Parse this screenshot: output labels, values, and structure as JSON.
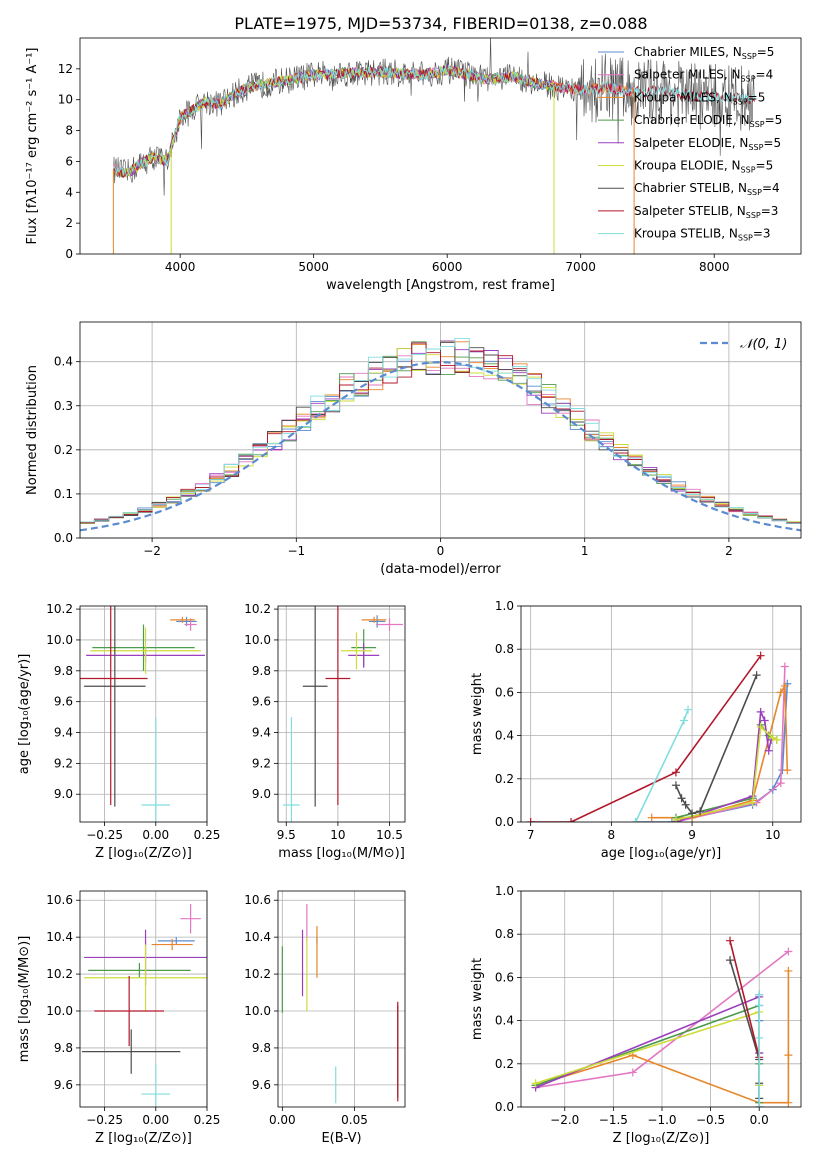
{
  "figure_title": "PLATE=1975, MJD=53734, FIBERID=0138, z=0.088",
  "colors": {
    "Chabrier MILES": "#5b8bd0",
    "Salpeter MILES": "#e377c2",
    "Kroupa MILES": "#e7862b",
    "Chabrier ELODIE": "#4c9a4c",
    "Salpeter ELODIE": "#9b3fbf",
    "Kroupa ELODIE": "#cddc39",
    "Chabrier STELIB": "#4d4d4d",
    "Salpeter STELIB": "#b2182b",
    "Kroupa STELIB": "#80dede"
  },
  "chart_data": [
    {
      "id": "spectrum",
      "type": "line",
      "xlabel": "wavelength [Angstrom, rest frame]",
      "ylabel": "Flux [fλ10⁻¹⁷ erg cm⁻² s⁻¹ A⁻¹]",
      "xlim": [
        3250,
        8650
      ],
      "ylim": [
        0,
        14
      ],
      "xticks": [
        4000,
        5000,
        6000,
        7000,
        8000
      ],
      "yticks": [
        0,
        2,
        4,
        6,
        8,
        10,
        12
      ],
      "legend_position": "upper right",
      "legend": [
        {
          "name": "Chabrier MILES",
          "label": "Chabrier MILES, N",
          "sub": "SSP",
          "n": "=5"
        },
        {
          "name": "Salpeter MILES",
          "label": "Salpeter MILES, N",
          "sub": "SSP",
          "n": "=4"
        },
        {
          "name": "Kroupa MILES",
          "label": "Kroupa MILES, N",
          "sub": "SSP",
          "n": "=5"
        },
        {
          "name": "Chabrier ELODIE",
          "label": "Chabrier ELODIE, N",
          "sub": "SSP",
          "n": "=5"
        },
        {
          "name": "Salpeter ELODIE",
          "label": "Salpeter ELODIE, N",
          "sub": "SSP",
          "n": "=5"
        },
        {
          "name": "Kroupa ELODIE",
          "label": "Kroupa ELODIE, N",
          "sub": "SSP",
          "n": "=5"
        },
        {
          "name": "Chabrier STELIB",
          "label": "Chabrier STELIB, N",
          "sub": "SSP",
          "n": "=4"
        },
        {
          "name": "Salpeter STELIB",
          "label": "Salpeter STELIB, N",
          "sub": "SSP",
          "n": "=3"
        },
        {
          "name": "Kroupa STELIB",
          "label": "Kroupa STELIB, N",
          "sub": "SSP",
          "n": "=3"
        }
      ],
      "data_continuum": {
        "wavelength": [
          3500,
          3600,
          3700,
          3800,
          3900,
          4000,
          4100,
          4200,
          4300,
          4400,
          4500,
          4700,
          5000,
          5200,
          5500,
          5800,
          6000,
          6300,
          6500,
          6700,
          7000,
          7200,
          7400,
          7600,
          7800,
          8000,
          8200,
          8300
        ],
        "flux": [
          5.5,
          5.2,
          5.8,
          6.3,
          6.0,
          8.8,
          9.4,
          9.9,
          9.7,
          10.3,
          10.8,
          11.1,
          11.6,
          11.7,
          11.8,
          11.6,
          11.9,
          11.3,
          11.5,
          11.0,
          10.6,
          10.8,
          10.5,
          10.6,
          10.3,
          10.2,
          10.1,
          10.0
        ]
      }
    },
    {
      "id": "residuals",
      "type": "histogram",
      "xlabel": "(data-model)/error",
      "ylabel": "Normed distribution",
      "xlim": [
        -2.5,
        2.5
      ],
      "ylim": [
        0,
        0.49
      ],
      "xticks": [
        -2,
        -1,
        0,
        1,
        2
      ],
      "yticks": [
        0.0,
        0.1,
        0.2,
        0.3,
        0.4
      ],
      "bin_width": 0.1,
      "legend_position": "upper right",
      "reference_curve": {
        "label": "𝒩(0, 1)",
        "mean": 0,
        "sigma": 1,
        "color": "#5b8bd0",
        "style": "dashed"
      }
    },
    {
      "id": "age_vs_Z",
      "type": "errorbar",
      "xlabel": "Z [log₁₀(Z/Z⊙)]",
      "ylabel": "age  [log₁₀(age/yr)]",
      "xlim": [
        -0.37,
        0.25
      ],
      "ylim": [
        8.82,
        10.22
      ],
      "xticks": [
        -0.25,
        0.0,
        0.25
      ],
      "xticklabels": [
        "−0.25",
        "0.00",
        "0.25"
      ],
      "yticks": [
        9.0,
        9.2,
        9.4,
        9.6,
        9.8,
        10.0,
        10.2
      ],
      "points": [
        {
          "model": "Chabrier MILES",
          "x": 0.15,
          "y": 10.12,
          "xerr": 0.05,
          "yerr": 0.03
        },
        {
          "model": "Salpeter MILES",
          "x": 0.17,
          "y": 10.1,
          "xerr": 0.03,
          "yerr": 0.04
        },
        {
          "model": "Kroupa MILES",
          "x": 0.13,
          "y": 10.13,
          "xerr": 0.06,
          "yerr": 0.02
        },
        {
          "model": "Chabrier ELODIE",
          "x": -0.06,
          "y": 9.95,
          "xerr": 0.25,
          "yerr": 0.15
        },
        {
          "model": "Salpeter ELODIE",
          "x": -0.05,
          "y": 9.9,
          "xerr": 0.29,
          "yerr": 0.05
        },
        {
          "model": "Kroupa ELODIE",
          "x": -0.05,
          "y": 9.93,
          "xerr": 0.27,
          "yerr": 0.15
        },
        {
          "model": "Chabrier STELIB",
          "x": -0.2,
          "y": 9.7,
          "xerr": 0.15,
          "yerr": 0.78
        },
        {
          "model": "Salpeter STELIB",
          "x": -0.22,
          "y": 9.75,
          "xerr": 0.18,
          "yerr": 0.82
        },
        {
          "model": "Kroupa STELIB",
          "x": 0.0,
          "y": 8.93,
          "xerr": 0.07,
          "yerr": 0.57
        }
      ]
    },
    {
      "id": "age_vs_mass",
      "type": "errorbar",
      "xlabel": "mass [log₁₀(M/M⊙)]",
      "xlim": [
        9.42,
        10.65
      ],
      "ylim": [
        8.82,
        10.22
      ],
      "xticks": [
        9.5,
        10.0,
        10.5
      ],
      "yticks": [
        9.0,
        9.2,
        9.4,
        9.6,
        9.8,
        10.0,
        10.2
      ],
      "points": [
        {
          "model": "Chabrier MILES",
          "x": 10.38,
          "y": 10.12,
          "xerr": 0.08,
          "yerr": 0.04
        },
        {
          "model": "Salpeter MILES",
          "x": 10.5,
          "y": 10.1,
          "xerr": 0.13,
          "yerr": 0.04
        },
        {
          "model": "Kroupa MILES",
          "x": 10.35,
          "y": 10.13,
          "xerr": 0.12,
          "yerr": 0.02
        },
        {
          "model": "Chabrier ELODIE",
          "x": 10.25,
          "y": 9.95,
          "xerr": 0.12,
          "yerr": 0.12
        },
        {
          "model": "Salpeter ELODIE",
          "x": 10.25,
          "y": 9.9,
          "xerr": 0.15,
          "yerr": 0.08
        },
        {
          "model": "Kroupa ELODIE",
          "x": 10.18,
          "y": 9.93,
          "xerr": 0.15,
          "yerr": 0.12
        },
        {
          "model": "Chabrier STELIB",
          "x": 9.78,
          "y": 9.7,
          "xerr": 0.12,
          "yerr": 0.78
        },
        {
          "model": "Salpeter STELIB",
          "x": 10.0,
          "y": 9.75,
          "xerr": 0.12,
          "yerr": 0.82
        },
        {
          "model": "Kroupa STELIB",
          "x": 9.55,
          "y": 8.93,
          "xerr": 0.08,
          "yerr": 0.57
        }
      ]
    },
    {
      "id": "massweight_vs_age",
      "type": "line",
      "xlabel": "age  [log₁₀(age/yr)]",
      "ylabel": "mass weight",
      "xlim": [
        6.88,
        10.35
      ],
      "ylim": [
        0,
        1.0
      ],
      "xticks": [
        7,
        8,
        9,
        10
      ],
      "yticks": [
        0.0,
        0.2,
        0.4,
        0.6,
        0.8,
        1.0
      ],
      "series": [
        {
          "model": "Chabrier MILES",
          "x": [
            8.3,
            8.75,
            9.0,
            9.75,
            10.0,
            10.12,
            10.18
          ],
          "y": [
            0.0,
            0.0,
            0.02,
            0.08,
            0.15,
            0.24,
            0.64
          ]
        },
        {
          "model": "Salpeter MILES",
          "x": [
            8.8,
            9.8,
            10.1,
            10.15
          ],
          "y": [
            0.0,
            0.09,
            0.18,
            0.72
          ]
        },
        {
          "model": "Kroupa MILES",
          "x": [
            8.5,
            9.0,
            9.75,
            10.1,
            10.15,
            10.18
          ],
          "y": [
            0.02,
            0.02,
            0.1,
            0.6,
            0.63,
            0.24
          ]
        },
        {
          "model": "Chabrier ELODIE",
          "x": [
            8.8,
            9.75,
            9.85,
            9.95,
            10.05
          ],
          "y": [
            0.02,
            0.11,
            0.45,
            0.4,
            0.38
          ]
        },
        {
          "model": "Salpeter ELODIE",
          "x": [
            8.8,
            9.75,
            9.85,
            9.9,
            9.95,
            9.98
          ],
          "y": [
            0.0,
            0.12,
            0.51,
            0.47,
            0.33,
            0.38
          ]
        },
        {
          "model": "Kroupa ELODIE",
          "x": [
            8.8,
            9.75,
            9.85,
            10.0,
            10.05
          ],
          "y": [
            0.01,
            0.09,
            0.44,
            0.39,
            0.38
          ]
        },
        {
          "model": "Chabrier STELIB",
          "x": [
            8.8,
            8.87,
            8.92,
            9.0,
            9.1,
            9.8
          ],
          "y": [
            0.17,
            0.11,
            0.08,
            0.04,
            0.05,
            0.68
          ]
        },
        {
          "model": "Salpeter STELIB",
          "x": [
            7.0,
            7.5,
            8.8,
            9.85
          ],
          "y": [
            0.0,
            0.0,
            0.23,
            0.77
          ]
        },
        {
          "model": "Kroupa STELIB",
          "x": [
            8.3,
            8.9,
            8.95
          ],
          "y": [
            0.0,
            0.47,
            0.52
          ]
        }
      ]
    },
    {
      "id": "mass_vs_Z",
      "type": "errorbar",
      "xlabel": "Z [log₁₀(Z/Z⊙)]",
      "ylabel": "mass [log₁₀(M/M⊙)]",
      "xlim": [
        -0.37,
        0.25
      ],
      "ylim": [
        9.48,
        10.65
      ],
      "xticks": [
        -0.25,
        0.0,
        0.25
      ],
      "xticklabels": [
        "−0.25",
        "0.00",
        "0.25"
      ],
      "yticks": [
        9.6,
        9.8,
        10.0,
        10.2,
        10.4,
        10.6
      ],
      "points": [
        {
          "model": "Chabrier MILES",
          "x": 0.1,
          "y": 10.38,
          "xerr": 0.09,
          "yerr": 0.02
        },
        {
          "model": "Salpeter MILES",
          "x": 0.17,
          "y": 10.5,
          "xerr": 0.05,
          "yerr": 0.08
        },
        {
          "model": "Kroupa MILES",
          "x": 0.08,
          "y": 10.36,
          "xerr": 0.1,
          "yerr": 0.03
        },
        {
          "model": "Chabrier ELODIE",
          "x": -0.08,
          "y": 10.22,
          "xerr": 0.25,
          "yerr": 0.04
        },
        {
          "model": "Salpeter ELODIE",
          "x": -0.05,
          "y": 10.29,
          "xerr": 0.3,
          "yerr": 0.15
        },
        {
          "model": "Kroupa ELODIE",
          "x": -0.05,
          "y": 10.18,
          "xerr": 0.3,
          "yerr": 0.18
        },
        {
          "model": "Chabrier STELIB",
          "x": -0.12,
          "y": 9.78,
          "xerr": 0.24,
          "yerr": 0.12
        },
        {
          "model": "Salpeter STELIB",
          "x": -0.13,
          "y": 10.0,
          "xerr": 0.17,
          "yerr": 0.19
        },
        {
          "model": "Kroupa STELIB",
          "x": 0.0,
          "y": 9.55,
          "xerr": 0.07,
          "yerr": 0.16
        }
      ]
    },
    {
      "id": "mass_vs_EBV",
      "type": "errorbar",
      "xlabel": "E(B-V)",
      "xlim": [
        -0.003,
        0.085
      ],
      "ylim": [
        9.48,
        10.65
      ],
      "xticks": [
        0.0,
        0.05
      ],
      "xticklabels": [
        "0.00",
        "0.05"
      ],
      "yticks": [
        9.6,
        9.8,
        10.0,
        10.2,
        10.4,
        10.6
      ],
      "points": [
        {
          "model": "Chabrier MILES",
          "x": 0.024,
          "y": 10.38,
          "xerr": 0.0,
          "yerr": 0.02
        },
        {
          "model": "Salpeter MILES",
          "x": 0.017,
          "y": 10.48,
          "xerr": 0.0,
          "yerr": 0.1
        },
        {
          "model": "Kroupa MILES",
          "x": 0.024,
          "y": 10.32,
          "xerr": 0.0,
          "yerr": 0.14
        },
        {
          "model": "Chabrier ELODIE",
          "x": 0.0,
          "y": 10.17,
          "xerr": 0.0,
          "yerr": 0.18
        },
        {
          "model": "Salpeter ELODIE",
          "x": 0.014,
          "y": 10.26,
          "xerr": 0.0,
          "yerr": 0.18
        },
        {
          "model": "Kroupa ELODIE",
          "x": 0.017,
          "y": 10.2,
          "xerr": 0.0,
          "yerr": 0.2
        },
        {
          "model": "Chabrier STELIB",
          "x": 0.08,
          "y": 9.78,
          "xerr": 0.0,
          "yerr": 0.25
        },
        {
          "model": "Salpeter STELIB",
          "x": 0.08,
          "y": 9.78,
          "xerr": 0.0,
          "yerr": 0.27
        },
        {
          "model": "Kroupa STELIB",
          "x": 0.037,
          "y": 9.6,
          "xerr": 0.0,
          "yerr": 0.1
        }
      ]
    },
    {
      "id": "massweight_vs_Z",
      "type": "line",
      "xlabel": "Z [log₁₀(Z/Z⊙)]",
      "ylabel": "mass weight",
      "xlim": [
        -2.45,
        0.43
      ],
      "ylim": [
        0,
        1.0
      ],
      "xticks": [
        -2.0,
        -1.5,
        -1.0,
        -0.5,
        0.0
      ],
      "xticklabels": [
        "−2.0",
        "−1.5",
        "−1.0",
        "−0.5",
        "0.0"
      ],
      "yticks": [
        0.0,
        0.2,
        0.4,
        0.6,
        0.8,
        1.0
      ],
      "series": [
        {
          "model": "Chabrier MILES",
          "x": [
            0.0,
            0.0,
            0.0,
            0.0,
            0.0
          ],
          "y": [
            0.0,
            0.1,
            0.25,
            0.4,
            0.52
          ]
        },
        {
          "model": "Salpeter MILES",
          "x": [
            -2.3,
            -1.3,
            0.3
          ],
          "y": [
            0.09,
            0.16,
            0.72
          ]
        },
        {
          "model": "Kroupa MILES",
          "x": [
            -2.3,
            -1.3,
            0.0,
            0.3,
            0.3,
            0.3
          ],
          "y": [
            0.1,
            0.24,
            0.02,
            0.02,
            0.63,
            0.24
          ]
        },
        {
          "model": "Chabrier ELODIE",
          "x": [
            -2.3,
            0.0,
            0.0,
            0.0
          ],
          "y": [
            0.1,
            0.47,
            0.2,
            0.02
          ]
        },
        {
          "model": "Salpeter ELODIE",
          "x": [
            -2.3,
            0.0,
            0.0,
            0.0
          ],
          "y": [
            0.09,
            0.51,
            0.25,
            0.0
          ]
        },
        {
          "model": "Kroupa ELODIE",
          "x": [
            -2.3,
            0.0,
            0.0
          ],
          "y": [
            0.11,
            0.44,
            0.1
          ]
        },
        {
          "model": "Chabrier STELIB",
          "x": [
            -0.3,
            0.0,
            0.0,
            0.0
          ],
          "y": [
            0.68,
            0.22,
            0.11,
            0.04
          ]
        },
        {
          "model": "Salpeter STELIB",
          "x": [
            -0.3,
            0.0
          ],
          "y": [
            0.77,
            0.23
          ]
        },
        {
          "model": "Kroupa STELIB",
          "x": [
            0.0,
            0.0,
            0.0,
            0.0
          ],
          "y": [
            0.0,
            0.32,
            0.47,
            0.52
          ]
        }
      ]
    }
  ]
}
